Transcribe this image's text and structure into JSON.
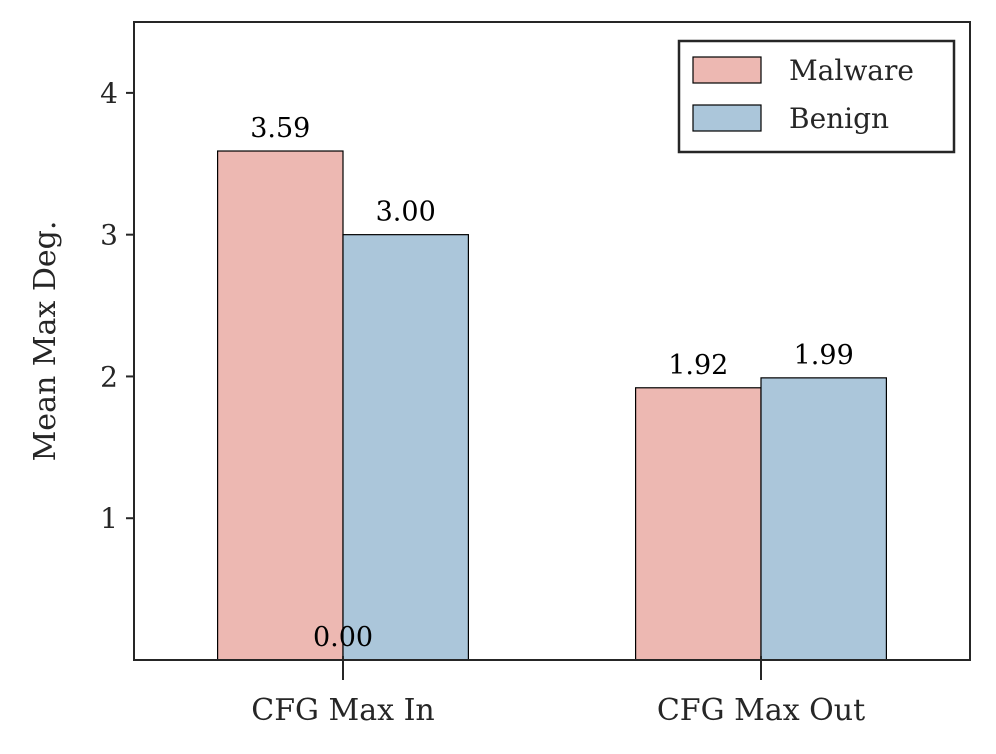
{
  "chart_data": {
    "type": "bar",
    "title": "",
    "xlabel": "",
    "ylabel": "Mean Max Deg.",
    "categories": [
      "CFG Max In",
      "CFG Max Out"
    ],
    "series": [
      {
        "name": "Malware",
        "values": [
          3.59,
          1.92
        ],
        "labels": [
          "3.59",
          "1.92"
        ],
        "color": "#edb8b2"
      },
      {
        "name": "Benign",
        "values": [
          3.0,
          1.99
        ],
        "labels": [
          "3.00",
          "1.99"
        ],
        "color": "#abc6da"
      }
    ],
    "annotations": [
      {
        "text": "0.00",
        "category": "CFG Max In",
        "y": 0.0
      }
    ],
    "ylim": [
      0,
      4.5
    ],
    "yticks": [
      1,
      2,
      3,
      4
    ],
    "xlim": [
      -0.5,
      1.5
    ],
    "bar_width": 0.3,
    "grid": false,
    "legend_position": "top-right"
  }
}
